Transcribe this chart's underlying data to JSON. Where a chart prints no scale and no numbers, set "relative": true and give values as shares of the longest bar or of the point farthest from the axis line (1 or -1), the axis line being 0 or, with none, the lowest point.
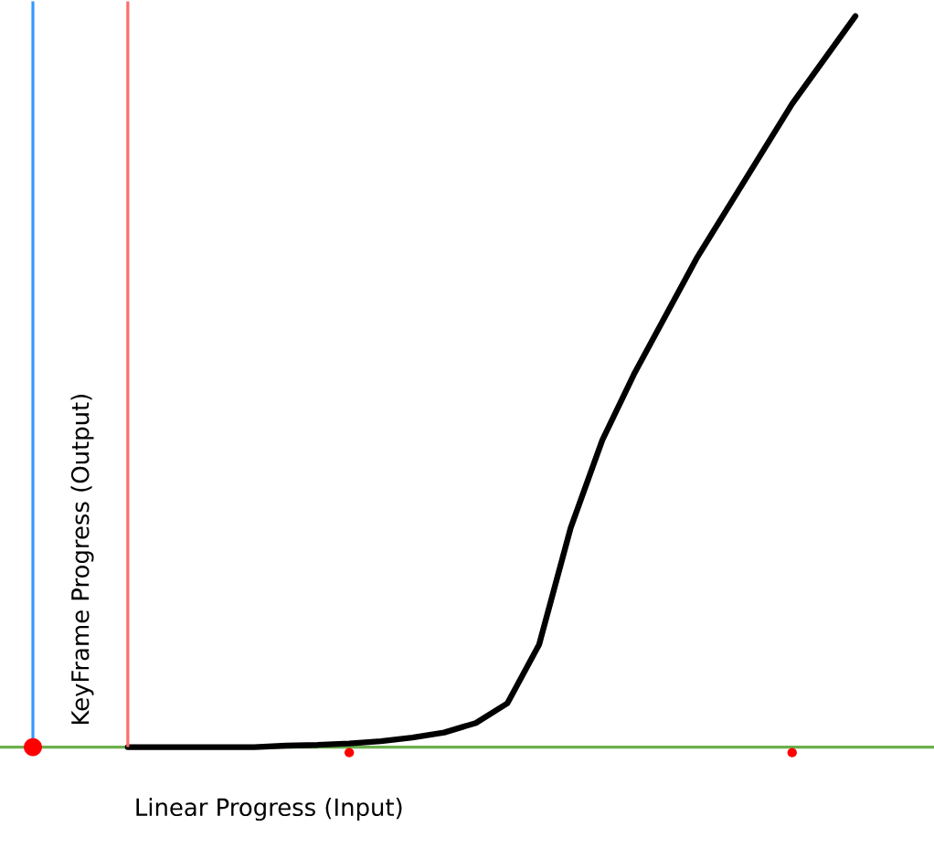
{
  "chart_data": {
    "type": "line",
    "relative": true,
    "xlabel": "Linear Progress (Input)",
    "ylabel": "KeyFrame Progress (Output)",
    "categories": [
      null,
      null,
      null,
      null,
      null,
      null,
      null,
      null,
      null,
      null,
      null,
      null,
      null,
      null,
      null,
      null,
      null,
      null,
      null,
      null,
      null,
      null,
      null,
      null,
      null,
      null,
      null
    ],
    "series": [
      {
        "color": "#000000",
        "values": [
          null,
          null,
          null,
          0,
          0,
          0,
          0,
          0,
          0.002,
          0.003,
          0.005,
          0.008,
          0.013,
          0.02,
          0.033,
          0.06,
          0.14,
          0.3,
          0.42,
          0.51,
          0.59,
          0.67,
          0.74,
          0.81,
          0.88,
          0.94,
          1
        ]
      }
    ]
  }
}
